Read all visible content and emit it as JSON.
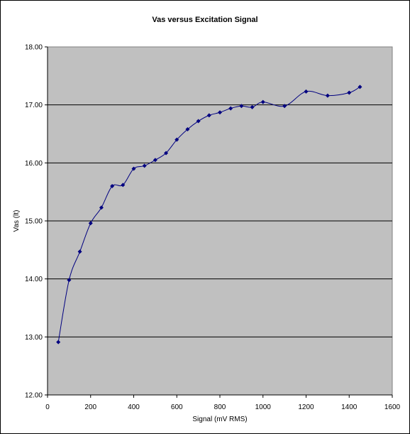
{
  "chart_data": {
    "type": "line",
    "title": "Vas versus Excitation Signal",
    "xlabel": "Signal (mV RMS)",
    "ylabel": "Vas (lt)",
    "xlim": [
      0,
      1600
    ],
    "ylim": [
      12.0,
      18.0
    ],
    "x_ticks": [
      0,
      200,
      400,
      600,
      800,
      1000,
      1200,
      1400,
      1600
    ],
    "y_ticks": [
      "12.00",
      "13.00",
      "14.00",
      "15.00",
      "16.00",
      "17.00",
      "18.00"
    ],
    "grid": "horizontal major",
    "legend": "none",
    "colors": {
      "plot_background": "#c0c0c0",
      "series": "#000080",
      "grid": "#000000"
    },
    "series": [
      {
        "x": [
          50,
          100,
          150,
          200,
          250,
          300,
          350,
          400,
          450,
          500,
          550,
          600,
          650,
          700,
          750,
          800,
          850,
          900,
          950,
          1000,
          1100,
          1200,
          1300,
          1400,
          1450
        ],
        "y": [
          12.91,
          13.98,
          14.47,
          14.96,
          15.23,
          15.6,
          15.62,
          15.9,
          15.95,
          16.05,
          16.17,
          16.4,
          16.58,
          16.72,
          16.82,
          16.87,
          16.94,
          16.98,
          16.96,
          17.05,
          16.98,
          17.23,
          17.16,
          17.21,
          17.31
        ]
      }
    ]
  }
}
